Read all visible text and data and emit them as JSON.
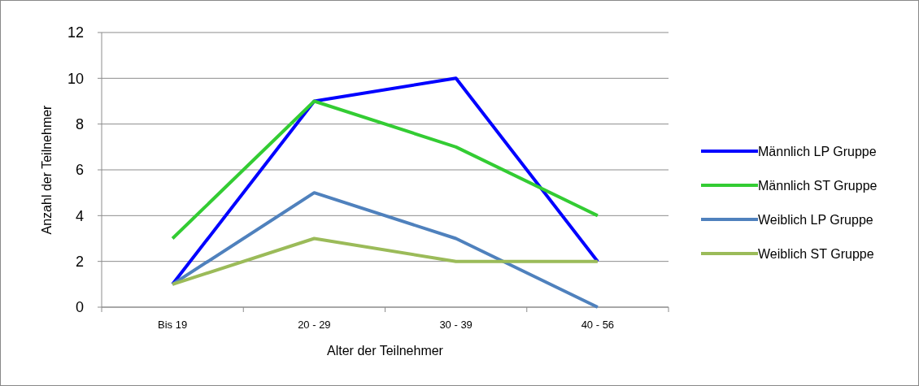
{
  "chart_data": {
    "type": "line",
    "xlabel": "Alter der Teilnehmer",
    "ylabel": "Anzahl der Teilnehmer",
    "categories": [
      "Bis 19",
      "20 - 29",
      "30 - 39",
      "40 - 56"
    ],
    "series": [
      {
        "name": "Männlich LP Gruppe",
        "color": "#0000ff",
        "values": [
          1,
          9,
          10,
          2
        ]
      },
      {
        "name": "Männlich ST Gruppe",
        "color": "#33cc33",
        "values": [
          3,
          9,
          7,
          4
        ]
      },
      {
        "name": "Weiblich LP Gruppe",
        "color": "#4f81bd",
        "values": [
          1,
          5,
          3,
          0
        ]
      },
      {
        "name": "Weiblich ST Gruppe",
        "color": "#9bbb59",
        "values": [
          1,
          3,
          2,
          2
        ]
      }
    ],
    "ylim": [
      0,
      12
    ],
    "yticks": [
      0,
      2,
      4,
      6,
      8,
      10,
      12
    ],
    "grid": "y",
    "legend": "right",
    "marker": "none",
    "line_style": "solid"
  }
}
